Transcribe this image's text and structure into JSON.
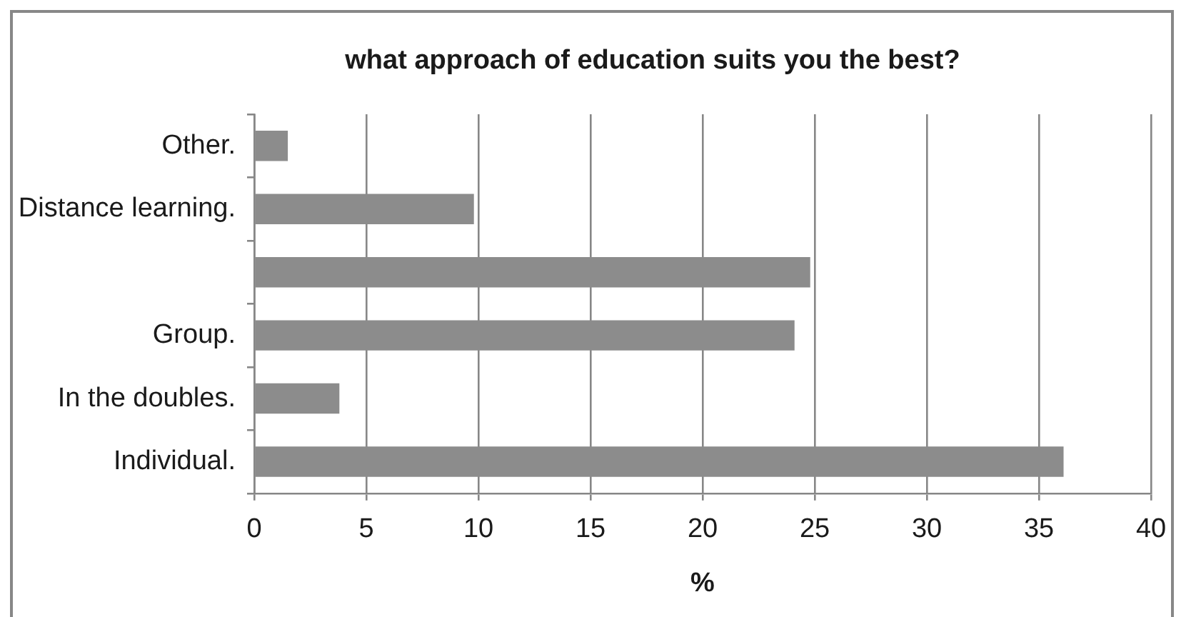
{
  "chart_data": {
    "type": "bar",
    "orientation": "horizontal",
    "title": "what approach of education suits you the best?",
    "xlabel": "%",
    "categories": [
      "Other.",
      "Distance learning.",
      null,
      "Group.",
      "In the doubles.",
      "Individual."
    ],
    "values": [
      1.5,
      9.8,
      24.8,
      24.1,
      3.8,
      36.1
    ],
    "color": "#8c8c8c",
    "xlim": [
      0,
      40
    ],
    "xticks": [
      0,
      5,
      10,
      15,
      20,
      25,
      30,
      35,
      40
    ],
    "grid": "x"
  }
}
